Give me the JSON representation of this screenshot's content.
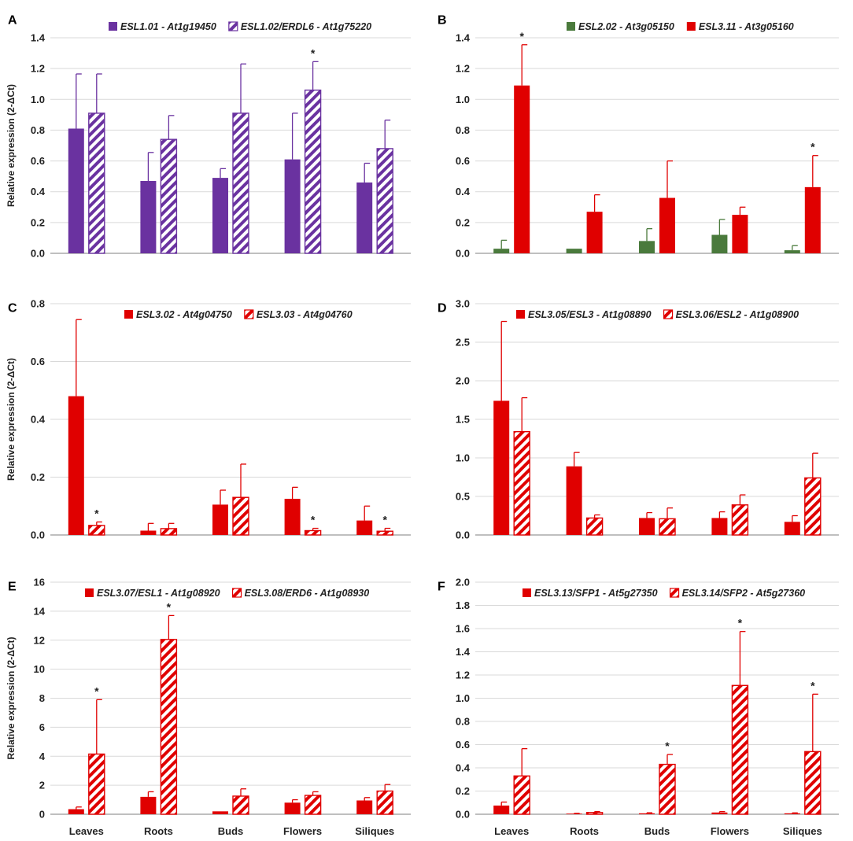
{
  "figure": {
    "type": "multi-panel bar chart"
  },
  "colors": {
    "purple": "#6a32a0",
    "green": "#4a7a3c",
    "red": "#e00000",
    "grid": "#d9d9d9",
    "axis": "#999999"
  },
  "chart_data": [
    {
      "panel": "A",
      "type": "bar",
      "ylabel": "Relative expression (2-ΔCt)",
      "ylim": [
        0,
        1.4
      ],
      "yticks": [
        "0.0",
        "0.2",
        "0.4",
        "0.6",
        "0.8",
        "1.0",
        "1.2",
        "1.4"
      ],
      "categories": [
        "Leaves",
        "Roots",
        "Buds",
        "Flowers",
        "Siliques"
      ],
      "show_xlabels": false,
      "series": [
        {
          "name": "ESL1.01 - At1g19450",
          "style": "solid",
          "color": "#6a32a0",
          "values": [
            0.81,
            0.47,
            0.49,
            0.61,
            0.46
          ],
          "errors": [
            0.355,
            0.185,
            0.06,
            0.3,
            0.125
          ],
          "stars": [
            false,
            false,
            false,
            false,
            false
          ]
        },
        {
          "name": "ESL1.02/ERDL6 - At1g75220",
          "style": "hatch",
          "color": "#6a32a0",
          "values": [
            0.91,
            0.74,
            0.91,
            1.06,
            0.68
          ],
          "errors": [
            0.255,
            0.155,
            0.32,
            0.185,
            0.185
          ],
          "stars": [
            false,
            false,
            false,
            true,
            false
          ]
        }
      ]
    },
    {
      "panel": "B",
      "type": "bar",
      "ylabel": "",
      "ylim": [
        0,
        1.4
      ],
      "yticks": [
        "0.0",
        "0.2",
        "0.4",
        "0.6",
        "0.8",
        "1.0",
        "1.2",
        "1.4"
      ],
      "categories": [
        "Leaves",
        "Roots",
        "Buds",
        "Flowers",
        "Siliques"
      ],
      "show_xlabels": false,
      "series": [
        {
          "name": "ESL2.02 - At3g05150",
          "style": "solid",
          "color": "#4a7a3c",
          "values": [
            0.03,
            0.03,
            0.08,
            0.12,
            0.02
          ],
          "errors": [
            0.055,
            0,
            0.08,
            0.1,
            0.03
          ],
          "stars": [
            false,
            false,
            false,
            false,
            false
          ]
        },
        {
          "name": "ESL3.11 - At3g05160",
          "style": "solid",
          "color": "#e00000",
          "values": [
            1.09,
            0.27,
            0.36,
            0.25,
            0.43
          ],
          "errors": [
            0.265,
            0.11,
            0.24,
            0.05,
            0.205
          ],
          "stars": [
            true,
            false,
            false,
            false,
            true
          ]
        }
      ]
    },
    {
      "panel": "C",
      "type": "bar",
      "ylabel": "Relative expression (2-ΔCt)",
      "ylim": [
        0,
        0.8
      ],
      "yticks": [
        "0.0",
        "0.2",
        "0.4",
        "0.6",
        "0.8"
      ],
      "categories": [
        "Leaves",
        "Roots",
        "Buds",
        "Flowers",
        "Siliques"
      ],
      "show_xlabels": false,
      "series": [
        {
          "name": "ESL3.02 - At4g04750",
          "style": "solid",
          "color": "#e00000",
          "values": [
            0.48,
            0.015,
            0.105,
            0.125,
            0.05
          ],
          "errors": [
            0.265,
            0.025,
            0.05,
            0.04,
            0.05
          ],
          "stars": [
            false,
            false,
            false,
            false,
            false
          ]
        },
        {
          "name": "ESL3.03 - At4g04760",
          "style": "hatch",
          "color": "#e00000",
          "values": [
            0.033,
            0.022,
            0.13,
            0.015,
            0.013
          ],
          "errors": [
            0.012,
            0.018,
            0.115,
            0.008,
            0.01
          ],
          "stars": [
            true,
            false,
            false,
            true,
            true
          ]
        }
      ]
    },
    {
      "panel": "D",
      "type": "bar",
      "ylabel": "",
      "ylim": [
        0,
        3.0
      ],
      "yticks": [
        "0.0",
        "0.5",
        "1.0",
        "1.5",
        "2.0",
        "2.5",
        "3.0"
      ],
      "categories": [
        "Leaves",
        "Roots",
        "Buds",
        "Flowers",
        "Siliques"
      ],
      "show_xlabels": false,
      "series": [
        {
          "name": "ESL3.05/ESL3 - At1g08890",
          "style": "solid",
          "color": "#e00000",
          "values": [
            1.74,
            0.89,
            0.22,
            0.22,
            0.17
          ],
          "errors": [
            1.03,
            0.18,
            0.07,
            0.08,
            0.08
          ],
          "stars": [
            false,
            false,
            false,
            false,
            false
          ]
        },
        {
          "name": "ESL3.06/ESL2 - At1g08900",
          "style": "hatch",
          "color": "#e00000",
          "values": [
            1.34,
            0.22,
            0.21,
            0.39,
            0.74
          ],
          "errors": [
            0.44,
            0.04,
            0.14,
            0.13,
            0.32
          ],
          "stars": [
            false,
            false,
            false,
            false,
            false
          ]
        }
      ]
    },
    {
      "panel": "E",
      "type": "bar",
      "ylabel": "Relative expression (2-ΔCt)",
      "ylim": [
        0,
        16
      ],
      "yticks": [
        "0",
        "2",
        "4",
        "6",
        "8",
        "10",
        "12",
        "14",
        "16"
      ],
      "categories": [
        "Leaves",
        "Roots",
        "Buds",
        "Flowers",
        "Siliques"
      ],
      "show_xlabels": true,
      "series": [
        {
          "name": "ESL3.07/ESL1 - At1g08920",
          "style": "solid",
          "color": "#e00000",
          "values": [
            0.35,
            1.2,
            0.2,
            0.8,
            0.95
          ],
          "errors": [
            0.15,
            0.35,
            0,
            0.2,
            0.2
          ],
          "stars": [
            false,
            false,
            false,
            false,
            false
          ]
        },
        {
          "name": "ESL3.08/ERD6 - At1g08930",
          "style": "hatch",
          "color": "#e00000",
          "values": [
            4.15,
            12.05,
            1.25,
            1.3,
            1.6
          ],
          "errors": [
            3.75,
            1.65,
            0.5,
            0.25,
            0.45
          ],
          "stars": [
            true,
            true,
            false,
            false,
            false
          ]
        }
      ]
    },
    {
      "panel": "F",
      "type": "bar",
      "ylabel": "",
      "ylim": [
        0,
        2.0
      ],
      "yticks": [
        "0.0",
        "0.2",
        "0.4",
        "0.6",
        "0.8",
        "1.0",
        "1.2",
        "1.4",
        "1.6",
        "1.8",
        "2.0"
      ],
      "categories": [
        "Leaves",
        "Roots",
        "Buds",
        "Flowers",
        "Siliques"
      ],
      "show_xlabels": true,
      "series": [
        {
          "name": "ESL3.13/SFP1 - At5g27350",
          "style": "solid",
          "color": "#e00000",
          "values": [
            0.075,
            0.005,
            0.008,
            0.015,
            0.008
          ],
          "errors": [
            0.03,
            0.003,
            0.005,
            0.008,
            0.004
          ],
          "stars": [
            false,
            false,
            false,
            false,
            false
          ]
        },
        {
          "name": "ESL3.14/SFP2 - At5g27360",
          "style": "hatch",
          "color": "#e00000",
          "values": [
            0.33,
            0.015,
            0.43,
            1.11,
            0.54
          ],
          "errors": [
            0.235,
            0.008,
            0.085,
            0.465,
            0.495
          ],
          "stars": [
            false,
            false,
            true,
            true,
            true
          ]
        }
      ]
    }
  ]
}
